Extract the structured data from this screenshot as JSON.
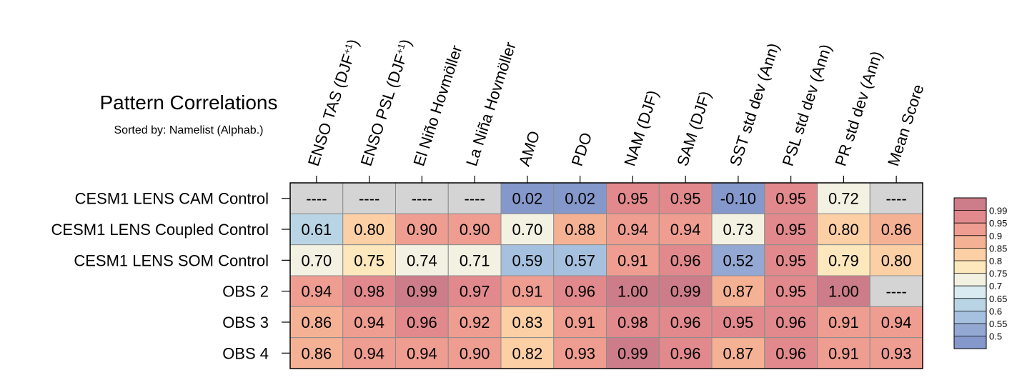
{
  "title": "Pattern Correlations",
  "subtitle": "Sorted by: Namelist (Alphab.)",
  "chart_data": {
    "type": "heatmap",
    "title": "Pattern Correlations",
    "subtitle": "Sorted by: Namelist (Alphab.)",
    "columns": [
      "ENSO TAS (DJF+1)",
      "ENSO PSL (DJF+1)",
      "El Niño Hovmöller",
      "La Niña Hovmöller",
      "AMO",
      "PDO",
      "NAM (DJF)",
      "SAM (DJF)",
      "SST std dev (Ann)",
      "PSL std dev (Ann)",
      "PR std dev (Ann)",
      "Mean Score"
    ],
    "rows": [
      "CESM1 LENS CAM Control",
      "CESM1 LENS Coupled Control",
      "CESM1 LENS SOM Control",
      "OBS 2",
      "OBS 3",
      "OBS 4"
    ],
    "values": [
      [
        null,
        null,
        null,
        null,
        0.02,
        0.02,
        0.95,
        0.95,
        -0.1,
        0.95,
        0.72,
        null
      ],
      [
        0.61,
        0.8,
        0.9,
        0.9,
        0.7,
        0.88,
        0.94,
        0.94,
        0.73,
        0.95,
        0.8,
        0.86
      ],
      [
        0.7,
        0.75,
        0.74,
        0.71,
        0.59,
        0.57,
        0.91,
        0.96,
        0.52,
        0.95,
        0.79,
        0.8
      ],
      [
        0.94,
        0.98,
        0.99,
        0.97,
        0.91,
        0.96,
        1.0,
        0.99,
        0.87,
        0.95,
        1.0,
        null
      ],
      [
        0.86,
        0.94,
        0.96,
        0.92,
        0.83,
        0.91,
        0.98,
        0.96,
        0.95,
        0.96,
        0.91,
        0.94
      ],
      [
        0.86,
        0.94,
        0.94,
        0.9,
        0.82,
        0.93,
        0.99,
        0.96,
        0.87,
        0.96,
        0.91,
        0.93
      ]
    ],
    "missing_label": "----",
    "missing_color": "#d4d4d4",
    "colorbar": {
      "levels": [
        0.99,
        0.95,
        0.9,
        0.85,
        0.8,
        0.75,
        0.7,
        0.65,
        0.6,
        0.55,
        0.5
      ],
      "labels": [
        "0.99",
        "0.95",
        "0.9",
        "0.85",
        "0.8",
        "0.75",
        "0.7",
        "0.65",
        "0.6",
        "0.55",
        "0.5"
      ],
      "colors": [
        "#cd7d89",
        "#e1898c",
        "#ee9d90",
        "#f5b194",
        "#fccfa5",
        "#fde7bd",
        "#f3f1e2",
        "#d9ebf1",
        "#b9d5e5",
        "#a6c1df",
        "#93a8d3",
        "#8598cb"
      ]
    }
  }
}
